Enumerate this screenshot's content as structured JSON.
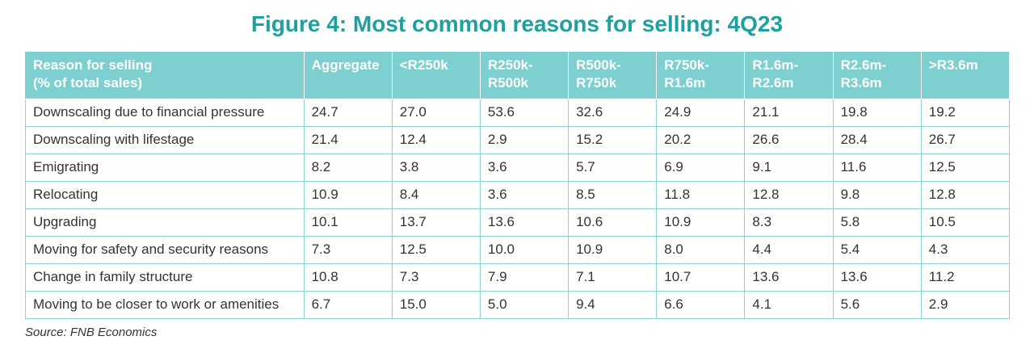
{
  "chart_data": {
    "type": "table",
    "title": "Figure 4: Most common reasons for selling: 4Q23",
    "columns": [
      "Reason for selling\n(% of total sales)",
      "Aggregate",
      "<R250k",
      "R250k-\nR500k",
      "R500k-\nR750k",
      "R750k-\nR1.6m",
      "R1.6m-\nR2.6m",
      "R2.6m-\nR3.6m",
      ">R3.6m"
    ],
    "rows": [
      [
        "Downscaling due to financial pressure",
        "24.7",
        "27.0",
        "53.6",
        "32.6",
        "24.9",
        "21.1",
        "19.8",
        "19.2"
      ],
      [
        "Downscaling with lifestage",
        "21.4",
        "12.4",
        "2.9",
        "15.2",
        "20.2",
        "26.6",
        "28.4",
        "26.7"
      ],
      [
        "Emigrating",
        "8.2",
        "3.8",
        "3.6",
        "5.7",
        "6.9",
        "9.1",
        "11.6",
        "12.5"
      ],
      [
        "Relocating",
        "10.9",
        "8.4",
        "3.6",
        "8.5",
        "11.8",
        "12.8",
        "9.8",
        "12.8"
      ],
      [
        "Upgrading",
        "10.1",
        "13.7",
        "13.6",
        "10.6",
        "10.9",
        "8.3",
        "5.8",
        "10.5"
      ],
      [
        "Moving for safety and security reasons",
        "7.3",
        "12.5",
        "10.0",
        "10.9",
        "8.0",
        "4.4",
        "5.4",
        "4.3"
      ],
      [
        "Change in family structure",
        "10.8",
        "7.3",
        "7.9",
        "7.1",
        "10.7",
        "13.6",
        "13.6",
        "11.2"
      ],
      [
        "Moving to be closer to work or amenities",
        "6.7",
        "15.0",
        "5.0",
        "9.4",
        "6.6",
        "4.1",
        "5.6",
        "2.9"
      ]
    ],
    "source": "Source: FNB Economics"
  },
  "colors": {
    "title": "#1fa0a0",
    "header_bg": "#7ecfd0",
    "header_text": "#ffffff",
    "cell_border": "#8cd3d3",
    "cell_text": "#333333"
  }
}
